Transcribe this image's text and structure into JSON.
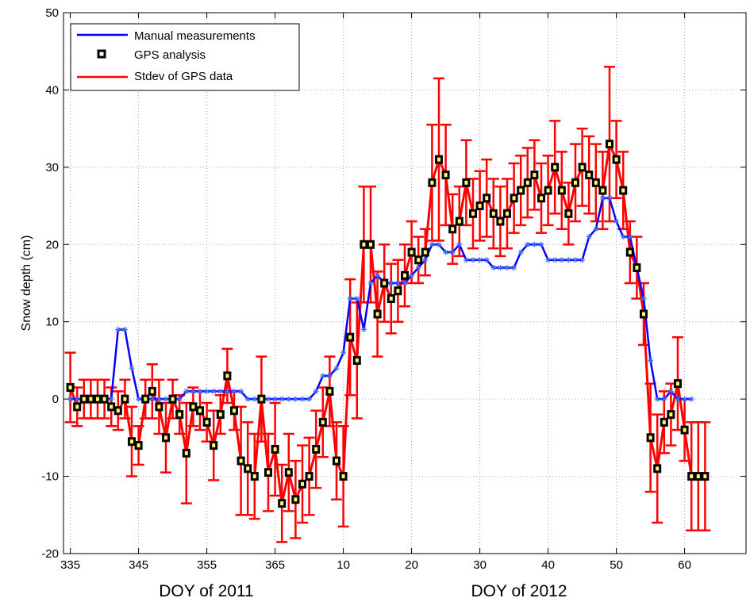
{
  "chart_data": {
    "type": "line",
    "title": "",
    "xlabel": "",
    "ylabel": "Snow depth (cm)",
    "x_sublabels": [
      "DOY of 2011",
      "DOY of 2012"
    ],
    "xlim": [
      334,
      434
    ],
    "ylim": [
      -20,
      50
    ],
    "grid": true,
    "legend_position": "top-left",
    "x_ticks": [
      {
        "value": 335,
        "label": "335"
      },
      {
        "value": 345,
        "label": "345"
      },
      {
        "value": 355,
        "label": "355"
      },
      {
        "value": 365,
        "label": "365"
      },
      {
        "value": 375,
        "label": "10"
      },
      {
        "value": 385,
        "label": "20"
      },
      {
        "value": 395,
        "label": "30"
      },
      {
        "value": 405,
        "label": "40"
      },
      {
        "value": 415,
        "label": "50"
      },
      {
        "value": 425,
        "label": "60"
      }
    ],
    "y_ticks": [
      {
        "value": -20,
        "label": "-20"
      },
      {
        "value": -10,
        "label": "-10"
      },
      {
        "value": 0,
        "label": "0"
      },
      {
        "value": 10,
        "label": "10"
      },
      {
        "value": 20,
        "label": "20"
      },
      {
        "value": 30,
        "label": "30"
      },
      {
        "value": 40,
        "label": "40"
      },
      {
        "value": 50,
        "label": "50"
      }
    ],
    "series": [
      {
        "name": "Manual measurements",
        "color": "#0000ff",
        "marker": "asterisk",
        "x": [
          335,
          336,
          337,
          338,
          339,
          340,
          341,
          342,
          343,
          344,
          345,
          346,
          347,
          348,
          349,
          350,
          351,
          352,
          353,
          354,
          355,
          356,
          357,
          358,
          359,
          360,
          361,
          362,
          363,
          364,
          365,
          366,
          367,
          368,
          369,
          370,
          371,
          372,
          373,
          374,
          375,
          376,
          377,
          378,
          379,
          380,
          381,
          382,
          383,
          384,
          385,
          386,
          387,
          388,
          389,
          390,
          391,
          392,
          393,
          394,
          395,
          396,
          397,
          398,
          399,
          400,
          401,
          402,
          403,
          404,
          405,
          406,
          407,
          408,
          409,
          410,
          411,
          412,
          413,
          414,
          415,
          416,
          417,
          418,
          419,
          420,
          421,
          422,
          423,
          424,
          425,
          426
        ],
        "y": [
          0,
          0,
          0,
          0,
          0,
          0,
          0,
          9,
          9,
          4,
          0,
          0,
          0,
          0,
          0,
          0,
          0,
          1,
          1,
          1,
          1,
          1,
          1,
          1,
          1,
          1,
          0,
          0,
          0,
          0,
          0,
          0,
          0,
          0,
          0,
          0,
          1,
          3,
          3,
          4,
          6,
          13,
          13,
          9,
          15,
          16,
          15,
          15,
          15,
          15,
          16,
          17,
          18,
          20,
          20,
          19,
          19,
          20,
          18,
          18,
          18,
          18,
          17,
          17,
          17,
          17,
          19,
          20,
          20,
          20,
          18,
          18,
          18,
          18,
          18,
          18,
          21,
          22,
          26,
          26,
          23,
          21,
          21,
          17,
          13,
          5,
          0,
          0,
          1,
          0,
          0,
          0
        ]
      },
      {
        "name": "GPS analysis",
        "color": "#000000",
        "marker": "square",
        "x": [
          335,
          336,
          337,
          338,
          339,
          340,
          341,
          342,
          343,
          344,
          345,
          346,
          347,
          348,
          349,
          350,
          351,
          352,
          353,
          354,
          355,
          356,
          357,
          358,
          359,
          360,
          361,
          362,
          363,
          364,
          365,
          366,
          367,
          368,
          369,
          370,
          371,
          372,
          373,
          374,
          375,
          376,
          377,
          378,
          379,
          380,
          381,
          382,
          383,
          384,
          385,
          386,
          387,
          388,
          389,
          390,
          391,
          392,
          393,
          394,
          395,
          396,
          397,
          398,
          399,
          400,
          401,
          402,
          403,
          404,
          405,
          406,
          407,
          408,
          409,
          410,
          411,
          412,
          413,
          414,
          415,
          416,
          417,
          418,
          419,
          420,
          421,
          422,
          423,
          424,
          425,
          426,
          427,
          428
        ],
        "y": [
          1.5,
          -1,
          0,
          0,
          0,
          0,
          -1,
          -1.5,
          0,
          -5.5,
          -6,
          0,
          1,
          -1,
          -5,
          0,
          -2,
          -7,
          -1,
          -1.5,
          -3,
          -6,
          -2,
          3,
          -1.5,
          -8,
          -9,
          -10,
          0,
          -9.5,
          -6.5,
          -13.5,
          -9.5,
          -13,
          -11,
          -10,
          -6.5,
          -3,
          1,
          -8,
          -10,
          8,
          5,
          20,
          20,
          11,
          15,
          13,
          14,
          16,
          19,
          18,
          19,
          28,
          31,
          29,
          22,
          23,
          28,
          24,
          25,
          26,
          24,
          23,
          24,
          26,
          27,
          28,
          29,
          26,
          27,
          30,
          27,
          24,
          28,
          30,
          29,
          28,
          27,
          33,
          31,
          27,
          19,
          17,
          11,
          -5,
          -9,
          -3,
          -2,
          2,
          -4,
          -10,
          -10,
          -10
        ],
        "yerr": [
          4.5,
          2.5,
          2.5,
          2.5,
          2.5,
          2.5,
          2.5,
          2.5,
          2.5,
          4.5,
          2.5,
          2.5,
          3.5,
          3.5,
          4.5,
          2.5,
          2.5,
          6.5,
          2.5,
          2.5,
          2.5,
          4.5,
          2.5,
          3.5,
          2.5,
          7,
          6,
          5.5,
          5.5,
          5,
          6,
          5,
          5,
          5,
          5,
          5,
          5,
          4.5,
          4.5,
          5,
          6.5,
          7.5,
          7.5,
          7.5,
          7.5,
          5.5,
          5,
          4.5,
          4,
          4,
          4,
          3,
          3,
          7.5,
          10.5,
          6.5,
          4.5,
          4.5,
          5.5,
          4.5,
          4.5,
          5,
          4.5,
          4.5,
          4.5,
          4.5,
          4.5,
          4.5,
          4.5,
          4.5,
          4.5,
          6,
          5,
          4,
          5,
          5,
          5,
          5,
          5,
          10,
          5,
          5,
          4,
          4,
          4,
          7,
          7,
          4,
          4,
          6,
          4,
          7,
          7,
          7
        ]
      },
      {
        "name": "Stdev of GPS data",
        "color": "#ff0000",
        "marker": "errorbar"
      }
    ]
  }
}
